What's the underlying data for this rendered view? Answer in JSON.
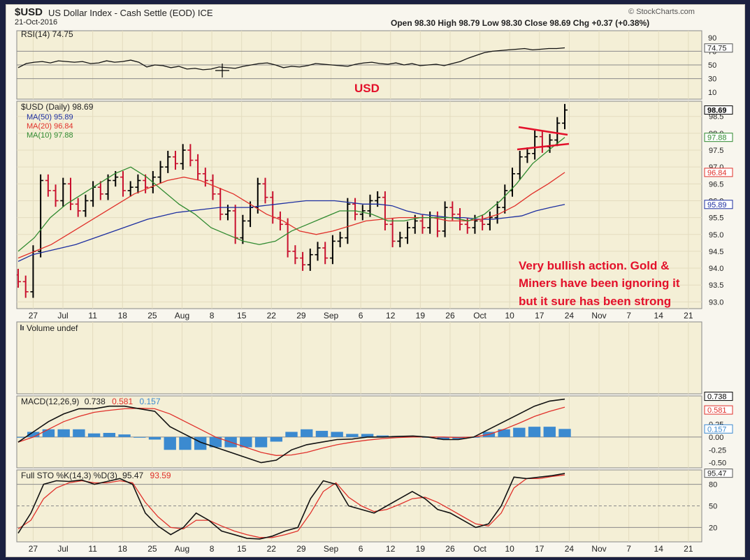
{
  "header": {
    "symbol": "$USD",
    "name": "US Dollar Index - Cash Settle (EOD) ICE",
    "date": "21-Oct-2016",
    "brand": "© StockCharts.com",
    "ohlc": "Open 98.30  High 98.79  Low 98.30  Close 98.69  Chg +0.37 (+0.38%)"
  },
  "colors": {
    "panel_bg": "#f4efd6",
    "grid": "#e2dcc0",
    "price_up": "#000000",
    "price_down": "#c8102e",
    "ma50": "#1c2ea0",
    "ma20": "#e0302a",
    "ma10": "#2f8a2f",
    "macd_hist": "#3b8ad0",
    "annotation": "#e3102a"
  },
  "chart_data": [
    {
      "type": "line",
      "name": "rsi_panel",
      "legend": "RSI(14) 74.75",
      "title": "USD",
      "last_value_label": "74.75",
      "ylim": [
        0,
        100
      ],
      "ticks": [
        90,
        70,
        50,
        30,
        10
      ],
      "reference_lines": [
        70,
        50,
        30
      ],
      "values": [
        46,
        52,
        54,
        55,
        53,
        56,
        55,
        54,
        55,
        52,
        53,
        56,
        54,
        55,
        57,
        54,
        47,
        50,
        49,
        46,
        48,
        44,
        45,
        43,
        44,
        47,
        46,
        45,
        48,
        50,
        52,
        53,
        50,
        46,
        48,
        47,
        49,
        52,
        51,
        50,
        49,
        48,
        51,
        53,
        54,
        52,
        51,
        53,
        50,
        52,
        49,
        50,
        51,
        49,
        52,
        55,
        60,
        64,
        68,
        70,
        71,
        72,
        73,
        74,
        72,
        73,
        74,
        74,
        75
      ]
    },
    {
      "type": "candlestick",
      "name": "price_panel",
      "legend": "$USD (Daily) 98.69",
      "ma_labels": [
        "MA(50) 95.89",
        "MA(20) 96.84",
        "MA(10) 97.88"
      ],
      "last_labels": [
        "98.69",
        "97.88",
        "96.84",
        "95.89"
      ],
      "ylim": [
        92.8,
        98.95
      ],
      "ticks": [
        98.5,
        98.0,
        97.5,
        97.0,
        96.5,
        96.0,
        95.5,
        95.0,
        94.5,
        94.0,
        93.5,
        93.0
      ],
      "tick_labels": [
        "98.5",
        "98.0",
        "97.5",
        "97.0",
        "96.5",
        "96.0",
        "95.5",
        "95.0",
        "94.5",
        "94.0",
        "93.5",
        "93.0"
      ],
      "x_labels": [
        "27",
        "Jul",
        "11",
        "18",
        "25",
        "Aug",
        "8",
        "15",
        "22",
        "29",
        "Sep",
        "6",
        "12",
        "19",
        "26",
        "Oct",
        "10",
        "17",
        "24",
        "Nov",
        "7",
        "14",
        "21"
      ],
      "closes": [
        93.6,
        93.3,
        94.5,
        96.6,
        96.3,
        96.0,
        96.5,
        95.9,
        95.7,
        96.0,
        96.4,
        96.2,
        96.6,
        96.7,
        96.3,
        96.4,
        96.6,
        96.4,
        96.7,
        97.0,
        97.3,
        97.1,
        97.5,
        97.2,
        96.8,
        96.6,
        96.2,
        95.6,
        95.7,
        94.9,
        95.4,
        95.8,
        96.5,
        96.1,
        95.5,
        95.3,
        94.5,
        94.3,
        94.1,
        94.4,
        94.6,
        94.3,
        94.8,
        94.9,
        95.9,
        95.6,
        95.7,
        96.0,
        96.1,
        95.3,
        94.8,
        94.9,
        95.2,
        95.4,
        95.2,
        95.5,
        95.1,
        95.8,
        95.6,
        95.3,
        95.2,
        95.4,
        95.3,
        95.5,
        95.8,
        96.3,
        96.8,
        97.3,
        97.4,
        97.9,
        97.6,
        97.8,
        98.3,
        98.69
      ],
      "ma50": [
        94.2,
        94.4,
        94.5,
        94.6,
        94.7,
        94.85,
        95.0,
        95.15,
        95.3,
        95.45,
        95.55,
        95.65,
        95.7,
        95.75,
        95.8,
        95.8,
        95.8,
        95.85,
        95.9,
        95.95,
        96.0,
        96.0,
        96.0,
        95.95,
        95.9,
        95.9,
        95.85,
        95.7,
        95.6,
        95.55,
        95.5,
        95.5,
        95.45,
        95.45,
        95.5,
        95.55,
        95.7,
        95.8,
        95.89
      ],
      "ma20": [
        94.3,
        94.5,
        94.7,
        95.0,
        95.3,
        95.6,
        95.9,
        96.2,
        96.4,
        96.6,
        96.7,
        96.6,
        96.4,
        96.2,
        95.9,
        95.6,
        95.4,
        95.1,
        95.0,
        95.1,
        95.25,
        95.4,
        95.45,
        95.5,
        95.5,
        95.5,
        95.4,
        95.4,
        95.45,
        95.6,
        95.85,
        96.2,
        96.5,
        96.84
      ],
      "ma10": [
        94.5,
        94.9,
        95.5,
        95.9,
        96.2,
        96.5,
        96.8,
        97.0,
        96.7,
        96.3,
        95.9,
        95.6,
        95.2,
        95.0,
        94.8,
        94.7,
        94.8,
        95.1,
        95.3,
        95.5,
        95.7,
        95.7,
        95.6,
        95.4,
        95.4,
        95.5,
        95.5,
        95.5,
        95.4,
        95.6,
        96.0,
        96.5,
        97.1,
        97.5,
        97.88
      ],
      "annotation": "Very bullish action.  Gold & Miners have been ignoring it but it sure has been strong"
    },
    {
      "type": "bar",
      "name": "volume_panel",
      "legend": "Volume undef"
    },
    {
      "type": "line",
      "name": "macd_panel",
      "legend_prefix": "MACD(12,26,9)",
      "macd_value": "0.738",
      "signal_value": "0.581",
      "hist_value": "0.157",
      "last_labels": [
        "0.738",
        "0.581",
        "0.157"
      ],
      "ylim": [
        -0.6,
        0.8
      ],
      "ticks": [
        0.25,
        0.0,
        -0.25,
        -0.5
      ],
      "tick_labels": [
        "0.25",
        "0.00",
        "-0.25",
        "-0.50"
      ],
      "macd": [
        -0.1,
        0.1,
        0.3,
        0.45,
        0.55,
        0.55,
        0.6,
        0.6,
        0.55,
        0.5,
        0.2,
        0.05,
        -0.1,
        -0.2,
        -0.3,
        -0.4,
        -0.5,
        -0.45,
        -0.25,
        -0.15,
        -0.1,
        -0.05,
        -0.04,
        0.0,
        0.0,
        0.01,
        0.02,
        0.0,
        -0.05,
        -0.05,
        0.0,
        0.15,
        0.3,
        0.45,
        0.6,
        0.7,
        0.738
      ],
      "signal": [
        -0.1,
        0.0,
        0.15,
        0.3,
        0.4,
        0.48,
        0.52,
        0.55,
        0.56,
        0.55,
        0.45,
        0.3,
        0.15,
        0.0,
        -0.1,
        -0.2,
        -0.3,
        -0.36,
        -0.35,
        -0.3,
        -0.22,
        -0.15,
        -0.1,
        -0.06,
        -0.03,
        -0.01,
        0.0,
        0.0,
        0.0,
        -0.01,
        0.0,
        0.05,
        0.15,
        0.27,
        0.4,
        0.5,
        0.581
      ],
      "hist": [
        0.0,
        0.1,
        0.15,
        0.15,
        0.15,
        0.07,
        0.08,
        0.05,
        -0.01,
        -0.05,
        -0.25,
        -0.25,
        -0.25,
        -0.2,
        -0.2,
        -0.2,
        -0.2,
        -0.09,
        0.1,
        0.15,
        0.12,
        0.1,
        0.06,
        0.06,
        0.03,
        0.02,
        0.02,
        0.0,
        -0.05,
        -0.04,
        0.0,
        0.1,
        0.15,
        0.18,
        0.2,
        0.2,
        0.157
      ]
    },
    {
      "type": "line",
      "name": "sto_panel",
      "legend_prefix": "Full STO %K(14,3) %D(3)",
      "k_value": "95.47",
      "d_value": "93.59",
      "last_labels": [
        "95.47"
      ],
      "ylim": [
        0,
        100
      ],
      "ticks": [
        80,
        50,
        20
      ],
      "reference_lines": [
        80,
        50,
        20
      ],
      "k": [
        12,
        40,
        80,
        85,
        84,
        86,
        80,
        84,
        88,
        80,
        40,
        22,
        10,
        20,
        40,
        30,
        15,
        10,
        5,
        4,
        8,
        15,
        20,
        60,
        85,
        80,
        50,
        45,
        40,
        50,
        60,
        70,
        60,
        45,
        40,
        30,
        20,
        25,
        50,
        90,
        88,
        90,
        92,
        95
      ],
      "d": [
        18,
        30,
        60,
        75,
        82,
        85,
        82,
        82,
        85,
        82,
        55,
        35,
        20,
        18,
        30,
        30,
        22,
        15,
        10,
        6,
        6,
        10,
        15,
        40,
        70,
        82,
        62,
        50,
        42,
        45,
        52,
        60,
        62,
        55,
        45,
        35,
        25,
        22,
        40,
        75,
        88,
        88,
        91,
        93
      ]
    }
  ]
}
